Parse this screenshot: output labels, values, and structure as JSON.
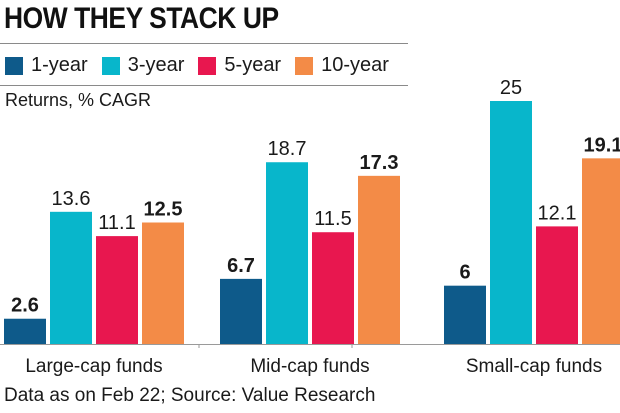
{
  "chart_data": {
    "type": "bar",
    "title": "HOW THEY STACK UP",
    "subtitle": "Returns, % CAGR",
    "xlabel": "",
    "ylabel": "Returns, % CAGR",
    "ylim": [
      0,
      25
    ],
    "grid": false,
    "legend_placement": "top-left",
    "categories": [
      "Large-cap funds",
      "Mid-cap funds",
      "Small-cap funds"
    ],
    "series": [
      {
        "name": "1-year",
        "color": "#0e5a8a",
        "bold_labels": true,
        "values": [
          2.6,
          6.7,
          6
        ]
      },
      {
        "name": "3-year",
        "color": "#08b6cb",
        "bold_labels": false,
        "values": [
          13.6,
          18.7,
          25
        ]
      },
      {
        "name": "5-year",
        "color": "#e8174f",
        "bold_labels": false,
        "values": [
          11.1,
          11.5,
          12.1
        ]
      },
      {
        "name": "10-year",
        "color": "#f38b47",
        "bold_labels": true,
        "values": [
          12.5,
          17.3,
          19.1
        ]
      }
    ],
    "value_labels": [
      [
        "2.6",
        "13.6",
        "11.1",
        "12.5"
      ],
      [
        "6.7",
        "18.7",
        "11.5",
        "17.3"
      ],
      [
        "6",
        "25",
        "12.1",
        "19.1"
      ]
    ],
    "source": "Data as on Feb 22; Source: Value Research"
  }
}
